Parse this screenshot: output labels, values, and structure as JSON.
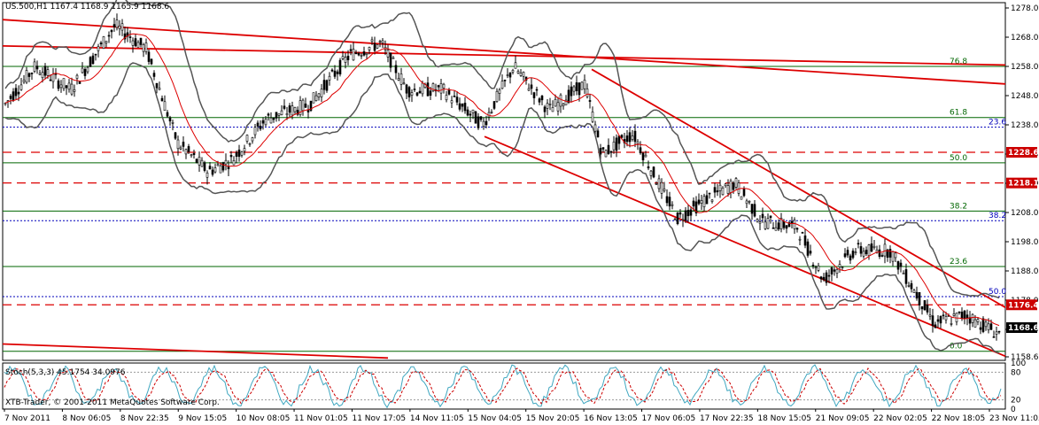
{
  "header": {
    "symbol": "US.500,H1",
    "ohlc": "1167.4 1168.9 1165.9 1168.6"
  },
  "stoch_header": "Stoch(5,3,3) 45.1754 34.0976",
  "copyright": "XTB-Trader, © 2001-2011 MetaQuotes Software Corp.",
  "price_axis": {
    "ticks": [
      "1278.0",
      "1268.0",
      "1258.0",
      "1248.0",
      "1238.0",
      "1228.0",
      "1218.0",
      "1208.0",
      "1198.0",
      "1188.0",
      "1178.0",
      "1168.0",
      "1158.6"
    ],
    "range": [
      1158.6,
      1278.0
    ]
  },
  "stoch_axis": {
    "ticks": [
      "100",
      "80",
      "20",
      "0"
    ]
  },
  "time_axis": {
    "labels": [
      "7 Nov 2011",
      "8 Nov 06:05",
      "8 Nov 22:35",
      "9 Nov 15:05",
      "10 Nov 08:05",
      "11 Nov 01:05",
      "11 Nov 17:05",
      "14 Nov 11:05",
      "15 Nov 04:05",
      "15 Nov 20:05",
      "16 Nov 13:05",
      "17 Nov 06:05",
      "17 Nov 22:35",
      "18 Nov 15:05",
      "21 Nov 09:05",
      "22 Nov 02:05",
      "22 Nov 18:05",
      "23 Nov 11:05"
    ]
  },
  "price_tags": [
    {
      "label": "1228.6",
      "value": 1228.6,
      "color": "#cc0000"
    },
    {
      "label": "1218.1",
      "value": 1218.1,
      "color": "#cc0000"
    },
    {
      "label": "1176.4",
      "value": 1176.4,
      "color": "#cc0000"
    },
    {
      "label": "1168.6",
      "value": 1168.6,
      "color": "#000000"
    }
  ],
  "fib_green": [
    {
      "label": "76.8",
      "value": 1258.0
    },
    {
      "label": "61.8",
      "value": 1240.5
    },
    {
      "label": "50.0",
      "value": 1225.0
    },
    {
      "label": "38.2",
      "value": 1208.5
    },
    {
      "label": "23.6",
      "value": 1189.5
    },
    {
      "label": "0.0",
      "value": 1160.5
    }
  ],
  "fib_blue": [
    {
      "label": "23.6",
      "value": 1237.2
    },
    {
      "label": "38.2",
      "value": 1205.2
    },
    {
      "label": "50.0",
      "value": 1179.2
    }
  ],
  "red_dashed": [
    1228.6,
    1218.1,
    1176.4
  ],
  "colors": {
    "candle": "#000000",
    "bb": "#555555",
    "ma": "#dd0000",
    "trend": "#dd0000",
    "fib_green": "#006600",
    "fib_blue": "#0000bb",
    "stoch_main": "#3fa7c0",
    "stoch_signal": "#cc0000"
  }
}
